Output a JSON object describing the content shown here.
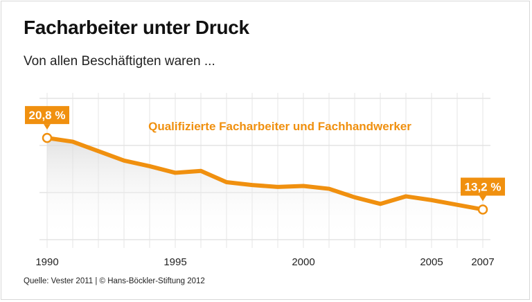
{
  "title": "Facharbeiter unter Druck",
  "subtitle": "Von allen Beschäftigten waren ...",
  "source": "Quelle: Vester 2011 | © Hans-Böckler-Stiftung 2012",
  "colors": {
    "line": "#f0900f",
    "grid": "#e4e4e4",
    "label_box": "#f0900f"
  },
  "chart_data": {
    "type": "area",
    "x": [
      1990,
      1991,
      1992,
      1993,
      1994,
      1995,
      1996,
      1997,
      1998,
      1999,
      2000,
      2001,
      2002,
      2003,
      2004,
      2005,
      2006,
      2007
    ],
    "series": [
      {
        "name": "Qualifizierte Facharbeiter und Fachhandwerker",
        "values": [
          20.8,
          20.4,
          19.4,
          18.4,
          17.8,
          17.1,
          17.3,
          16.1,
          15.8,
          15.6,
          15.7,
          15.4,
          14.5,
          13.8,
          14.6,
          14.2,
          13.7,
          13.2
        ]
      }
    ],
    "ylim": [
      10,
      25
    ],
    "y_gridlines": [
      10,
      15,
      20,
      25
    ],
    "xtick_labels": [
      "1990",
      "1995",
      "2000",
      "2005",
      "2007"
    ],
    "xtick_values": [
      1990,
      1995,
      2000,
      2005,
      2007
    ],
    "annotations": [
      {
        "x": 1990,
        "y": 20.8,
        "text": "20,8 %"
      },
      {
        "x": 2007,
        "y": 13.2,
        "text": "13,2 %"
      }
    ],
    "grid": true,
    "legend": "inline-top-center",
    "unit": "%"
  }
}
